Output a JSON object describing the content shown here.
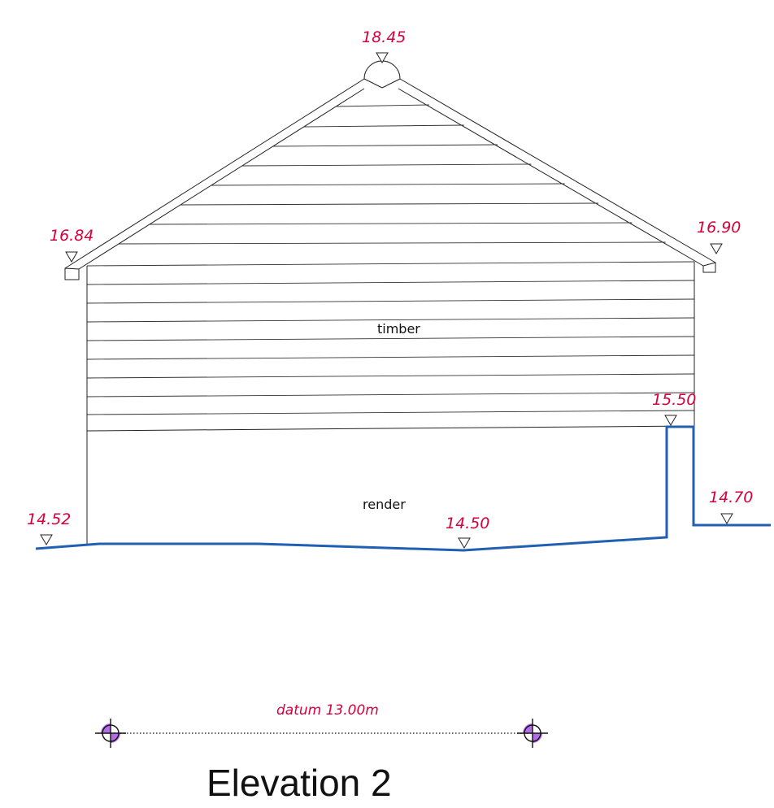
{
  "drawing": {
    "title": "Elevation 2",
    "datum_label": "datum  13.00m",
    "materials": {
      "upper": "timber",
      "lower": "render"
    },
    "levels": {
      "ridge": "18.45",
      "left_eaves": "16.84",
      "right_eaves": "16.90",
      "step_top": "15.50",
      "ground_left": "14.52",
      "ground_mid": "14.50",
      "ground_right": "14.70"
    },
    "colors": {
      "level_text": "#d6003a",
      "ground_line": "#1f5fb4",
      "datum_marker_fill": "#b36ee6"
    },
    "symbols": {
      "level_marker": "triangle-down-icon",
      "datum_marker": "crosshair-circle-icon"
    }
  }
}
